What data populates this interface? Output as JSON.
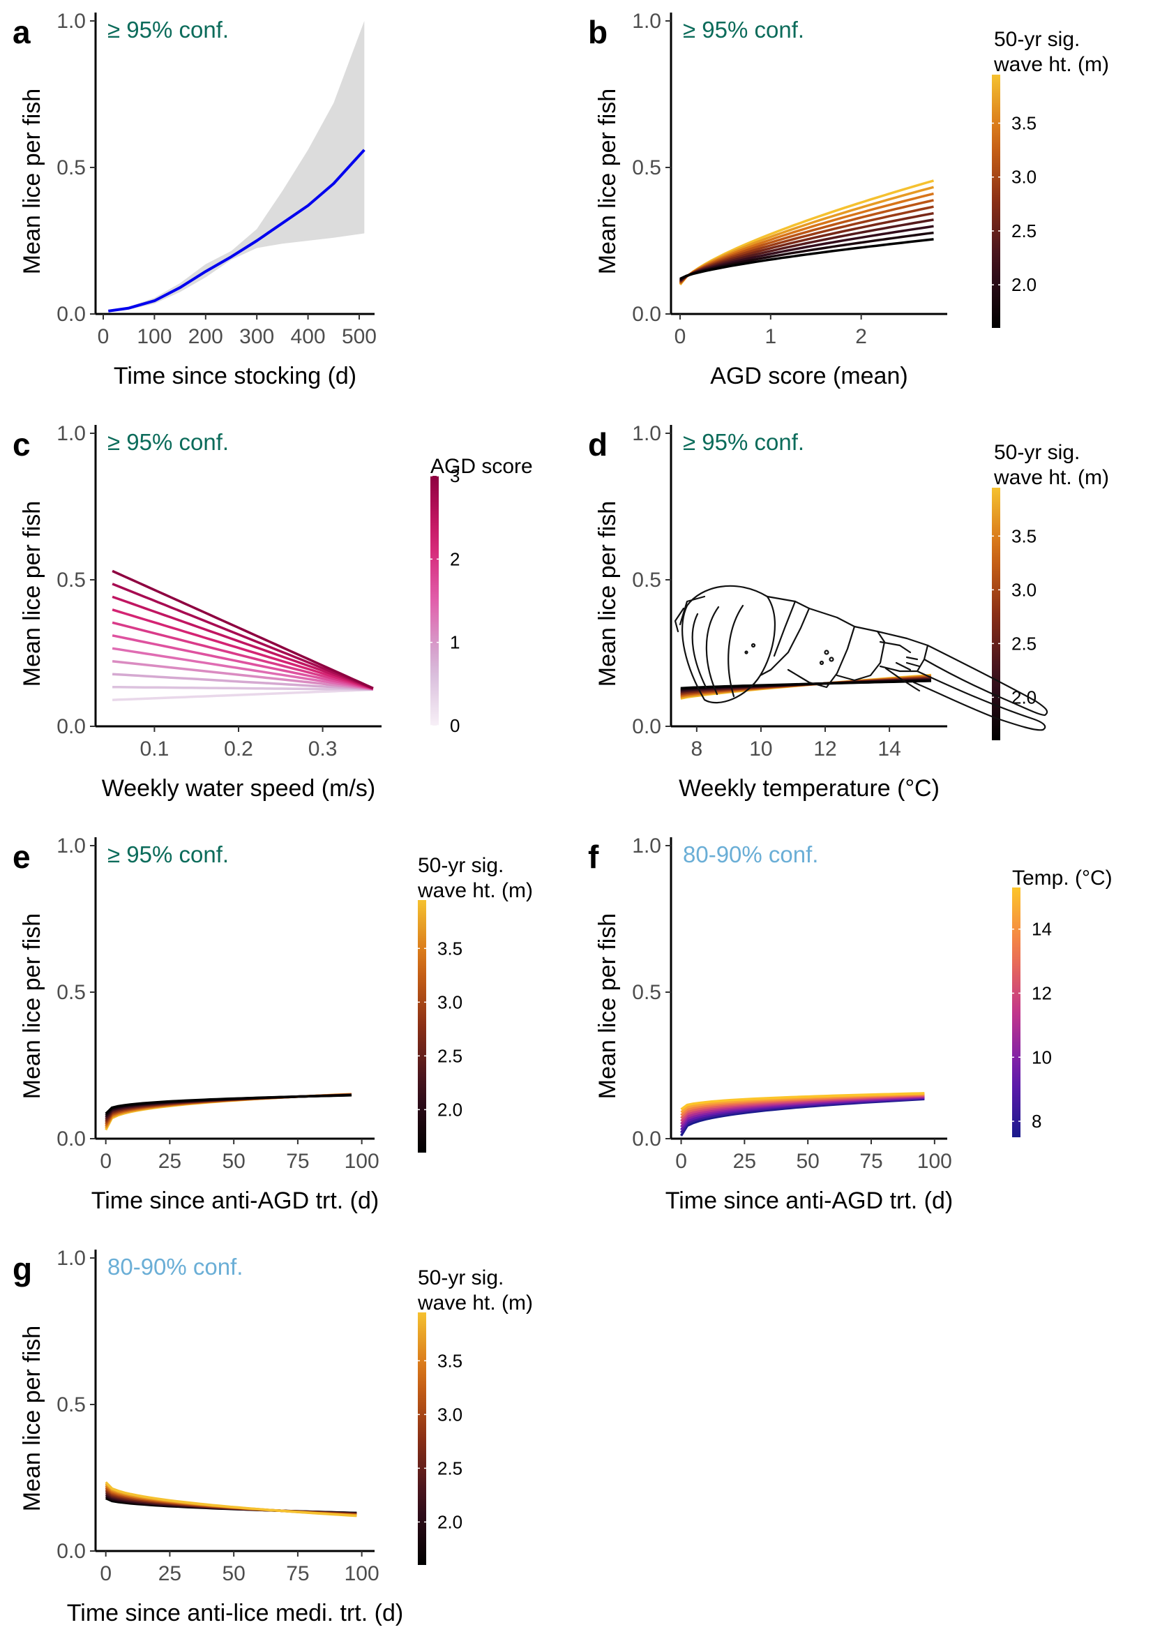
{
  "chart_data": [
    {
      "panel": "a",
      "type": "line",
      "annotation": "≥ 95% conf.",
      "annotation_color": "#0b6b5a",
      "xlabel": "Time since stocking (d)",
      "ylabel": "Mean lice per fish",
      "xlim": [
        -15,
        530
      ],
      "ylim": [
        0,
        1.0
      ],
      "xticks": [
        0,
        100,
        200,
        300,
        400,
        500
      ],
      "yticks": [
        0.0,
        0.5,
        1.0
      ],
      "series": [
        {
          "name": "",
          "color": "#0000ee",
          "x": [
            10,
            50,
            100,
            150,
            200,
            250,
            300,
            350,
            400,
            450,
            510
          ],
          "y": [
            0.01,
            0.02,
            0.045,
            0.09,
            0.145,
            0.195,
            0.25,
            0.31,
            0.37,
            0.445,
            0.56
          ],
          "ci_low": [
            0.005,
            0.015,
            0.035,
            0.075,
            0.125,
            0.185,
            0.225,
            0.24,
            0.25,
            0.26,
            0.275
          ],
          "ci_high": [
            0.015,
            0.025,
            0.055,
            0.105,
            0.17,
            0.215,
            0.29,
            0.42,
            0.56,
            0.72,
            1.0
          ]
        }
      ]
    },
    {
      "panel": "b",
      "type": "line",
      "annotation": "≥ 95% conf.",
      "annotation_color": "#0b6b5a",
      "xlabel": "AGD score (mean)",
      "ylabel": "Mean lice per fish",
      "xlim": [
        -0.1,
        2.95
      ],
      "ylim": [
        0,
        1.0
      ],
      "xticks": [
        0,
        1,
        2
      ],
      "yticks": [
        0.0,
        0.5,
        1.0
      ],
      "line_family": {
        "x_range": [
          0,
          2.8
        ],
        "n": 10,
        "cross_x": 0.25,
        "cross_y": 0.13,
        "start_min": 0.1,
        "start_max": 0.12,
        "end_min": 0.255,
        "end_max": 0.455,
        "curve": 0.7,
        "palette": "inferno",
        "dark_at_start": "max"
      },
      "colorbar": {
        "title": [
          "50-yr sig.",
          "wave ht. (m)"
        ],
        "palette": "inferno",
        "range": [
          1.6,
          3.95
        ],
        "ticks": [
          2.0,
          2.5,
          3.0,
          3.5
        ],
        "tick_labels": [
          "2.0",
          "2.5",
          "3.0",
          "3.5"
        ]
      }
    },
    {
      "panel": "c",
      "type": "line",
      "annotation": "≥ 95% conf.",
      "annotation_color": "#0b6b5a",
      "xlabel": "Weekly water speed (m/s)",
      "ylabel": "Mean lice per fish",
      "xlim": [
        0.03,
        0.37
      ],
      "ylim": [
        0,
        1.0
      ],
      "xticks": [
        0.1,
        0.2,
        0.3
      ],
      "yticks": [
        0.0,
        0.5,
        1.0
      ],
      "line_family": {
        "x_range": [
          0.05,
          0.36
        ],
        "n": 11,
        "start_min": 0.09,
        "start_max": 0.53,
        "end_min": 0.125,
        "end_max": 0.13,
        "curve": 1.0,
        "palette": "pink"
      },
      "colorbar": {
        "title": [
          "AGD score"
        ],
        "palette": "pink",
        "range": [
          0,
          3
        ],
        "ticks": [
          0,
          1,
          2,
          3
        ],
        "tick_labels": [
          "0",
          "1",
          "2",
          "3"
        ]
      }
    },
    {
      "panel": "d",
      "type": "line",
      "annotation": "≥ 95% conf.",
      "annotation_color": "#0b6b5a",
      "xlabel": "Weekly temperature (°C)",
      "ylabel": "Mean lice per fish",
      "xlim": [
        7.2,
        15.8
      ],
      "ylim": [
        0,
        1.0
      ],
      "xticks": [
        8,
        10,
        12,
        14
      ],
      "yticks": [
        0.0,
        0.5,
        1.0
      ],
      "line_family": {
        "x_range": [
          7.5,
          15.3
        ],
        "n": 10,
        "start_min": 0.095,
        "start_max": 0.13,
        "end_min": 0.155,
        "end_max": 0.175,
        "curve": 0.8,
        "palette": "inferno",
        "dark_at_start": "max"
      },
      "colorbar": {
        "title": [
          "50-yr sig.",
          "wave ht. (m)"
        ],
        "palette": "inferno",
        "range": [
          1.6,
          3.95
        ],
        "ticks": [
          2.0,
          2.5,
          3.0,
          3.5
        ],
        "tick_labels": [
          "2.0",
          "2.5",
          "3.0",
          "3.5"
        ]
      }
    },
    {
      "panel": "e",
      "type": "line",
      "annotation": "≥ 95% conf.",
      "annotation_color": "#0b6b5a",
      "xlabel": "Time since anti-AGD trt. (d)",
      "ylabel": "Mean lice per fish",
      "xlim": [
        -4,
        105
      ],
      "ylim": [
        0,
        1.0
      ],
      "xticks": [
        0,
        25,
        50,
        75,
        100
      ],
      "yticks": [
        0.0,
        0.5,
        1.0
      ],
      "line_family": {
        "x_range": [
          0,
          96
        ],
        "n": 10,
        "start_min": 0.03,
        "start_max": 0.085,
        "end_min": 0.148,
        "end_max": 0.152,
        "curve": 0.3,
        "palette": "inferno",
        "dark_at_start": "max"
      },
      "colorbar": {
        "title": [
          "50-yr sig.",
          "wave ht. (m)"
        ],
        "palette": "inferno",
        "range": [
          1.6,
          3.95
        ],
        "ticks": [
          2.0,
          2.5,
          3.0,
          3.5
        ],
        "tick_labels": [
          "2.0",
          "2.5",
          "3.0",
          "3.5"
        ]
      }
    },
    {
      "panel": "f",
      "type": "line",
      "annotation": "80-90% conf.",
      "annotation_color": "#6aaed6",
      "xlabel": "Time since anti-AGD trt. (d)",
      "ylabel": "Mean lice per fish",
      "xlim": [
        -4,
        105
      ],
      "ylim": [
        0,
        1.0
      ],
      "xticks": [
        0,
        25,
        50,
        75,
        100
      ],
      "yticks": [
        0.0,
        0.5,
        1.0
      ],
      "line_family": {
        "x_range": [
          0,
          96
        ],
        "n": 10,
        "start_min": 0.01,
        "start_max": 0.1,
        "end_min": 0.135,
        "end_max": 0.155,
        "curve": 0.35,
        "palette": "plasma",
        "dark_at_start": "min"
      },
      "colorbar": {
        "title": [
          "Temp. (°C)"
        ],
        "palette": "plasma",
        "range": [
          7.5,
          15.3
        ],
        "ticks": [
          8,
          10,
          12,
          14
        ],
        "tick_labels": [
          "8",
          "10",
          "12",
          "14"
        ]
      }
    },
    {
      "panel": "g",
      "type": "line",
      "annotation": "80-90% conf.",
      "annotation_color": "#6aaed6",
      "xlabel": "Time since anti-lice medi. trt. (d)",
      "ylabel": "Mean lice per fish",
      "xlim": [
        -4,
        105
      ],
      "ylim": [
        0,
        1.0
      ],
      "xticks": [
        0,
        25,
        50,
        75,
        100
      ],
      "yticks": [
        0.0,
        0.5,
        1.0
      ],
      "line_family": {
        "x_range": [
          0,
          98
        ],
        "n": 10,
        "start_min": 0.18,
        "start_max": 0.235,
        "end_min": 0.12,
        "end_max": 0.13,
        "curve": 0.45,
        "palette": "inferno",
        "dark_at_start": "min"
      },
      "colorbar": {
        "title": [
          "50-yr sig.",
          "wave ht. (m)"
        ],
        "palette": "inferno",
        "range": [
          1.6,
          3.95
        ],
        "ticks": [
          2.0,
          2.5,
          3.0,
          3.5
        ],
        "tick_labels": [
          "2.0",
          "2.5",
          "3.0",
          "3.5"
        ]
      }
    }
  ]
}
